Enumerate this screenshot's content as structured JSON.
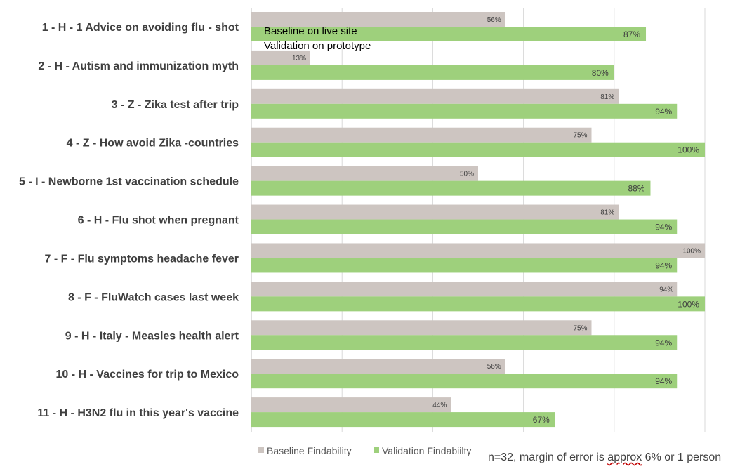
{
  "chart_data": {
    "type": "bar",
    "orientation": "horizontal",
    "categories": [
      "1 - H - 1 Advice on avoiding flu - shot",
      "2 - H - Autism and immunization myth",
      "3 - Z - Zika test after trip",
      "4 - Z - How avoid Zika -countries",
      "5 - I - Newborne 1st vaccination schedule",
      "6 - H - Flu shot when pregnant",
      "7 - F - Flu symptoms headache fever",
      "8 - F - FluWatch cases last week",
      "9 - H - Italy - Measles health alert",
      "10 - H - Vaccines for trip to Mexico",
      "11 - H - H3N2 flu in this year's vaccine"
    ],
    "series": [
      {
        "name": "Baseline Findability",
        "color": "#cdc5c1",
        "values": [
          56,
          13,
          81,
          75,
          50,
          81,
          100,
          94,
          75,
          56,
          44
        ],
        "labels": [
          "56%",
          "13%",
          "81%",
          "75%",
          "50%",
          "81%",
          "100%",
          "94%",
          "75%",
          "56%",
          "44%"
        ]
      },
      {
        "name": "Validation Findabiilty",
        "color": "#9ed07c",
        "values": [
          87,
          80,
          94,
          100,
          88,
          94,
          94,
          100,
          94,
          94,
          67
        ],
        "labels": [
          "87%",
          "80%",
          "94%",
          "100%",
          "88%",
          "94%",
          "94%",
          "100%",
          "94%",
          "94%",
          "67%"
        ]
      }
    ],
    "xlim": [
      0,
      100
    ],
    "grid": true,
    "legend_position": "bottom-left",
    "annotations": [
      "Baseline on live site",
      "Validation on prototype"
    ]
  },
  "footnote": {
    "prefix": "n=32, margin of error is ",
    "underlined": "approx",
    "suffix": " 6% or 1 person"
  }
}
